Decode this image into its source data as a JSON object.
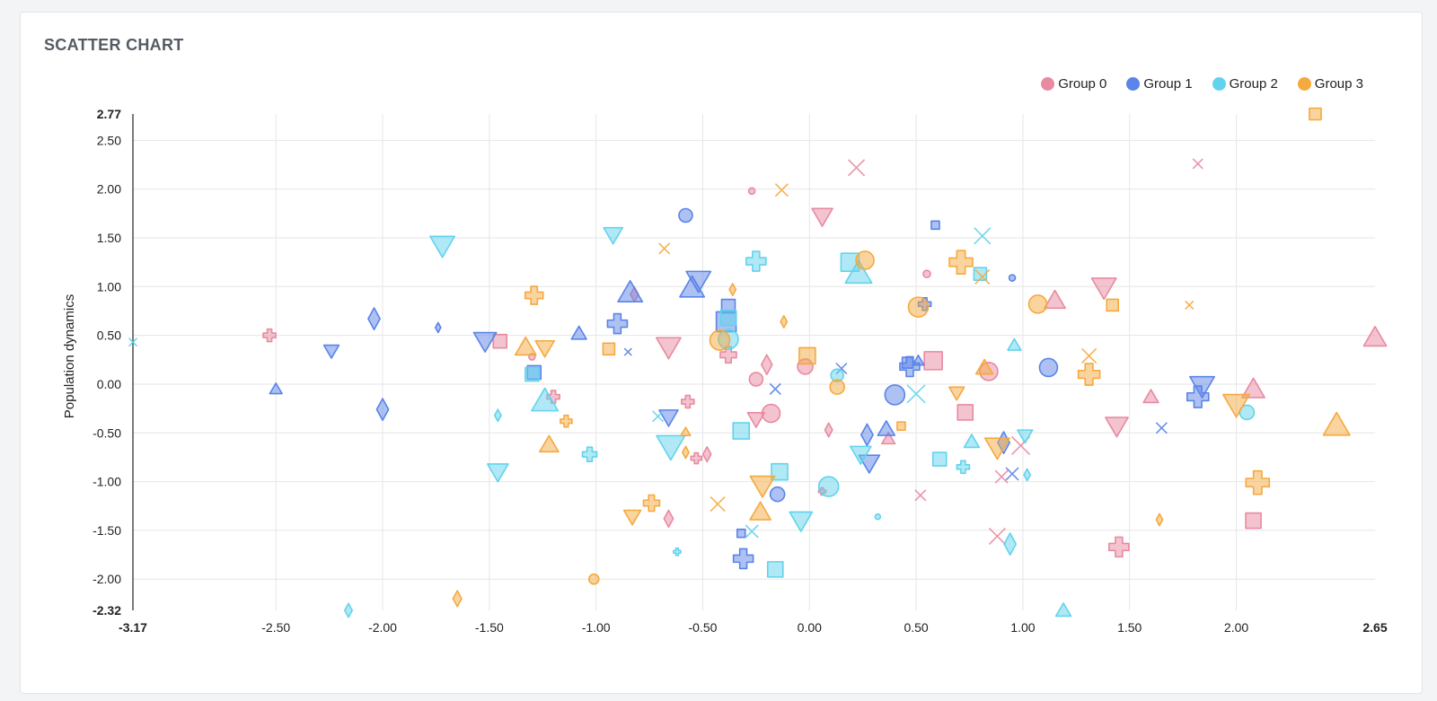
{
  "card": {
    "title": "SCATTER CHART"
  },
  "colors": [
    "#e88aa0",
    "#5b84e8",
    "#62d3ec",
    "#f5a93f"
  ],
  "chart_data": {
    "type": "scatter",
    "title": "SCATTER CHART",
    "xlabel": "",
    "ylabel": "Population dynamics",
    "xlim": [
      -3.17,
      2.65
    ],
    "ylim": [
      -2.32,
      2.77
    ],
    "x_ticks": [
      -3.17,
      -2.5,
      -2.0,
      -1.5,
      -1.0,
      -0.5,
      0.0,
      0.5,
      1.0,
      1.5,
      2.0,
      2.65
    ],
    "y_ticks": [
      -2.32,
      -2.0,
      -1.5,
      -1.0,
      -0.5,
      0.0,
      0.5,
      1.0,
      1.5,
      2.0,
      2.5,
      2.77
    ],
    "grid": true,
    "legend_position": "top-right",
    "series": [
      {
        "name": "Group 0",
        "points": [
          [
            -2.53,
            0.5,
            "cross",
            14
          ],
          [
            -1.45,
            0.44,
            "square",
            15
          ],
          [
            -1.3,
            0.28,
            "circle",
            7
          ],
          [
            -1.2,
            -0.13,
            "cross",
            14
          ],
          [
            -0.82,
            0.92,
            "diamond",
            15
          ],
          [
            -0.66,
            0.38,
            "triangle-down",
            26
          ],
          [
            -0.57,
            -0.18,
            "cross",
            14
          ],
          [
            -0.53,
            -0.76,
            "cross",
            12
          ],
          [
            -0.48,
            -0.72,
            "diamond",
            15
          ],
          [
            -0.66,
            -1.38,
            "diamond",
            17
          ],
          [
            -0.38,
            0.3,
            "cross",
            18
          ],
          [
            -0.25,
            0.05,
            "circle",
            15
          ],
          [
            -0.2,
            0.2,
            "diamond",
            20
          ],
          [
            -0.18,
            -0.3,
            "circle",
            20
          ],
          [
            -0.25,
            -0.36,
            "triangle-down",
            18
          ],
          [
            -0.27,
            1.98,
            "circle",
            7
          ],
          [
            -0.02,
            0.18,
            "circle",
            17
          ],
          [
            0.06,
            1.72,
            "triangle-down",
            22
          ],
          [
            0.09,
            -0.47,
            "diamond",
            14
          ],
          [
            0.06,
            -1.1,
            "cross",
            8
          ],
          [
            0.22,
            2.22,
            "x",
            18
          ],
          [
            0.37,
            -0.56,
            "triangle-up",
            14
          ],
          [
            0.52,
            -1.14,
            "x",
            12
          ],
          [
            0.55,
            1.13,
            "circle",
            8
          ],
          [
            0.58,
            0.24,
            "square",
            20
          ],
          [
            0.73,
            -0.29,
            "square",
            17
          ],
          [
            0.84,
            0.13,
            "circle",
            20
          ],
          [
            0.9,
            -0.95,
            "x",
            14
          ],
          [
            0.88,
            -1.56,
            "x",
            18
          ],
          [
            0.99,
            -0.63,
            "x",
            20
          ],
          [
            1.15,
            0.86,
            "triangle-up",
            22
          ],
          [
            1.38,
            0.99,
            "triangle-down",
            26
          ],
          [
            1.44,
            -0.43,
            "triangle-down",
            24
          ],
          [
            1.45,
            -1.67,
            "cross",
            22
          ],
          [
            1.6,
            -0.13,
            "triangle-up",
            16
          ],
          [
            1.82,
            2.26,
            "x",
            11
          ],
          [
            2.08,
            -0.05,
            "triangle-up",
            24
          ],
          [
            2.08,
            -1.4,
            "square",
            17
          ],
          [
            2.65,
            0.48,
            "triangle-up",
            24
          ]
        ]
      },
      {
        "name": "Group 1",
        "points": [
          [
            -2.5,
            -0.05,
            "triangle-up",
            13
          ],
          [
            -2.24,
            0.34,
            "triangle-down",
            16
          ],
          [
            -2.04,
            0.67,
            "diamond",
            22
          ],
          [
            -2.0,
            -0.26,
            "diamond",
            22
          ],
          [
            -1.74,
            0.58,
            "diamond",
            10
          ],
          [
            -1.52,
            0.44,
            "triangle-down",
            24
          ],
          [
            -1.29,
            0.12,
            "square",
            15
          ],
          [
            -1.08,
            0.52,
            "triangle-up",
            16
          ],
          [
            -0.9,
            0.62,
            "cross",
            22
          ],
          [
            -0.84,
            0.94,
            "triangle-up",
            26
          ],
          [
            -0.85,
            0.33,
            "x",
            8
          ],
          [
            -0.66,
            -0.34,
            "triangle-down",
            20
          ],
          [
            -0.58,
            1.73,
            "circle",
            15
          ],
          [
            -0.55,
            0.99,
            "triangle-up",
            26
          ],
          [
            -0.52,
            1.06,
            "triangle-down",
            26
          ],
          [
            -0.38,
            0.8,
            "square",
            15
          ],
          [
            -0.39,
            0.64,
            "square",
            22
          ],
          [
            -0.32,
            -1.53,
            "square",
            9
          ],
          [
            -0.31,
            -1.79,
            "cross",
            22
          ],
          [
            -0.16,
            -0.05,
            "x",
            12
          ],
          [
            -0.15,
            -1.13,
            "circle",
            16
          ],
          [
            0.15,
            0.16,
            "x",
            12
          ],
          [
            0.27,
            -0.52,
            "diamond",
            22
          ],
          [
            0.28,
            -0.81,
            "triangle-down",
            22
          ],
          [
            0.36,
            -0.46,
            "triangle-up",
            18
          ],
          [
            0.4,
            -0.11,
            "circle",
            22
          ],
          [
            0.46,
            0.22,
            "square",
            12
          ],
          [
            0.47,
            0.18,
            "cross",
            22
          ],
          [
            0.51,
            0.24,
            "triangle-up",
            12
          ],
          [
            0.54,
            0.82,
            "cross",
            14
          ],
          [
            0.59,
            1.63,
            "square",
            9
          ],
          [
            0.91,
            -0.6,
            "diamond",
            22
          ],
          [
            0.95,
            -0.92,
            "x",
            14
          ],
          [
            0.95,
            1.09,
            "circle",
            7
          ],
          [
            1.12,
            0.17,
            "circle",
            20
          ],
          [
            1.65,
            -0.45,
            "x",
            12
          ],
          [
            1.84,
            -0.02,
            "triangle-down",
            26
          ],
          [
            1.82,
            -0.13,
            "cross",
            24
          ]
        ]
      },
      {
        "name": "Group 2",
        "points": [
          [
            -3.17,
            0.43,
            "x",
            9
          ],
          [
            -2.16,
            -2.32,
            "diamond",
            14
          ],
          [
            -1.72,
            1.42,
            "triangle-down",
            26
          ],
          [
            -1.46,
            -0.9,
            "triangle-down",
            22
          ],
          [
            -1.46,
            -0.32,
            "diamond",
            12
          ],
          [
            -1.3,
            0.1,
            "square",
            15
          ],
          [
            -1.24,
            -0.17,
            "triangle-up",
            28
          ],
          [
            -1.03,
            -0.72,
            "cross",
            16
          ],
          [
            -0.92,
            1.53,
            "triangle-down",
            20
          ],
          [
            -0.65,
            -0.64,
            "triangle-down",
            30
          ],
          [
            -0.71,
            -0.33,
            "x",
            12
          ],
          [
            -0.62,
            -1.72,
            "cross",
            8
          ],
          [
            -0.38,
            0.46,
            "circle",
            22
          ],
          [
            -0.38,
            0.68,
            "square",
            17
          ],
          [
            -0.32,
            -0.48,
            "square",
            18
          ],
          [
            -0.27,
            -1.51,
            "x",
            14
          ],
          [
            -0.25,
            1.26,
            "cross",
            22
          ],
          [
            -0.14,
            -0.9,
            "square",
            18
          ],
          [
            -0.16,
            -1.9,
            "square",
            17
          ],
          [
            -0.04,
            -1.4,
            "triangle-down",
            24
          ],
          [
            0.09,
            -1.05,
            "circle",
            22
          ],
          [
            0.13,
            0.09,
            "circle",
            14
          ],
          [
            0.19,
            1.25,
            "square",
            20
          ],
          [
            0.23,
            1.14,
            "triangle-up",
            28
          ],
          [
            0.24,
            -0.72,
            "triangle-down",
            22
          ],
          [
            0.32,
            -1.36,
            "circle",
            6
          ],
          [
            0.5,
            -0.1,
            "x",
            20
          ],
          [
            0.61,
            -0.77,
            "square",
            15
          ],
          [
            0.72,
            -0.85,
            "cross",
            14
          ],
          [
            0.76,
            -0.59,
            "triangle-up",
            16
          ],
          [
            0.8,
            1.13,
            "square",
            14
          ],
          [
            0.81,
            1.52,
            "x",
            18
          ],
          [
            0.96,
            0.4,
            "triangle-up",
            14
          ],
          [
            1.01,
            -0.53,
            "triangle-down",
            16
          ],
          [
            1.02,
            -0.93,
            "diamond",
            12
          ],
          [
            0.94,
            -1.64,
            "diamond",
            22
          ],
          [
            1.19,
            -2.32,
            "triangle-up",
            16
          ],
          [
            2.05,
            -0.29,
            "circle",
            16
          ]
        ]
      },
      {
        "name": "Group 3",
        "points": [
          [
            -1.65,
            -2.2,
            "diamond",
            16
          ],
          [
            -1.33,
            0.38,
            "triangle-up",
            22
          ],
          [
            -1.29,
            0.91,
            "cross",
            20
          ],
          [
            -1.24,
            0.37,
            "triangle-down",
            20
          ],
          [
            -1.22,
            -0.62,
            "triangle-up",
            20
          ],
          [
            -1.14,
            -0.38,
            "cross",
            13
          ],
          [
            -1.01,
            -2.0,
            "circle",
            11
          ],
          [
            -0.94,
            0.36,
            "square",
            13
          ],
          [
            -0.83,
            -1.36,
            "triangle-down",
            18
          ],
          [
            -0.74,
            -1.22,
            "cross",
            18
          ],
          [
            -0.68,
            1.39,
            "x",
            12
          ],
          [
            -0.58,
            -0.49,
            "triangle-up",
            10
          ],
          [
            -0.58,
            -0.7,
            "diamond",
            12
          ],
          [
            -0.43,
            -1.23,
            "x",
            16
          ],
          [
            -0.42,
            0.45,
            "circle",
            22
          ],
          [
            -0.36,
            0.97,
            "diamond",
            12
          ],
          [
            -0.23,
            -1.31,
            "triangle-up",
            22
          ],
          [
            -0.22,
            -1.04,
            "triangle-down",
            26
          ],
          [
            -0.12,
            0.64,
            "diamond",
            12
          ],
          [
            -0.13,
            1.99,
            "x",
            14
          ],
          [
            -0.01,
            0.29,
            "square",
            18
          ],
          [
            0.13,
            -0.03,
            "circle",
            16
          ],
          [
            0.26,
            1.27,
            "circle",
            20
          ],
          [
            0.43,
            -0.43,
            "square",
            9
          ],
          [
            0.51,
            0.79,
            "circle",
            22
          ],
          [
            0.69,
            -0.09,
            "triangle-down",
            16
          ],
          [
            0.71,
            1.25,
            "cross",
            26
          ],
          [
            0.81,
            1.1,
            "x",
            16
          ],
          [
            0.82,
            0.17,
            "triangle-up",
            18
          ],
          [
            0.88,
            -0.65,
            "triangle-down",
            26
          ],
          [
            1.07,
            0.82,
            "circle",
            20
          ],
          [
            1.31,
            0.29,
            "x",
            16
          ],
          [
            1.31,
            0.1,
            "cross",
            24
          ],
          [
            1.42,
            0.81,
            "square",
            13
          ],
          [
            1.64,
            -1.39,
            "diamond",
            12
          ],
          [
            1.78,
            0.81,
            "x",
            9
          ],
          [
            2.0,
            -0.21,
            "triangle-down",
            28
          ],
          [
            2.1,
            -1.01,
            "cross",
            26
          ],
          [
            2.37,
            2.77,
            "square",
            13
          ],
          [
            2.47,
            -0.42,
            "triangle-up",
            28
          ]
        ]
      }
    ]
  }
}
